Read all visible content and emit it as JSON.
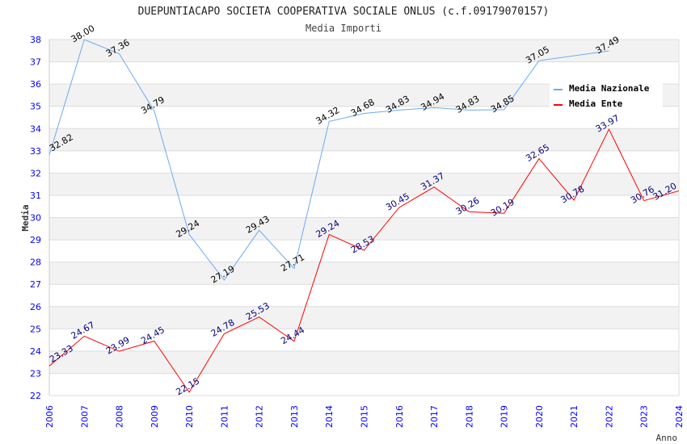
{
  "chart_data": {
    "type": "line",
    "title": "DUEPUNTIACAPO SOCIETA COOPERATIVA SOCIALE ONLUS (c.f.09179070157)",
    "subtitle": "Media Importi",
    "xlabel": "Anno",
    "ylabel": "Media",
    "ylim": [
      22,
      38
    ],
    "xlim": [
      2006,
      2024
    ],
    "grid": true,
    "legend_position": "top-right",
    "x": [
      2006,
      2007,
      2008,
      2009,
      2010,
      2011,
      2012,
      2013,
      2014,
      2015,
      2016,
      2017,
      2018,
      2019,
      2020,
      2021,
      2022,
      2023,
      2024
    ],
    "series": [
      {
        "name": "Media Nazionale",
        "color": "#6aaaf0",
        "label_color": "#000000",
        "values": [
          32.82,
          38.0,
          37.36,
          34.79,
          29.24,
          27.19,
          29.43,
          27.71,
          34.32,
          34.68,
          34.83,
          34.94,
          34.83,
          34.85,
          37.05,
          null,
          37.49,
          null,
          null
        ]
      },
      {
        "name": "Media Ente",
        "color": "#ff0000",
        "label_color": "#000080",
        "values": [
          23.33,
          24.67,
          23.99,
          24.45,
          22.15,
          24.78,
          25.53,
          24.44,
          29.24,
          28.53,
          30.45,
          31.37,
          30.26,
          30.19,
          32.65,
          30.78,
          33.97,
          30.76,
          31.2
        ]
      }
    ]
  }
}
